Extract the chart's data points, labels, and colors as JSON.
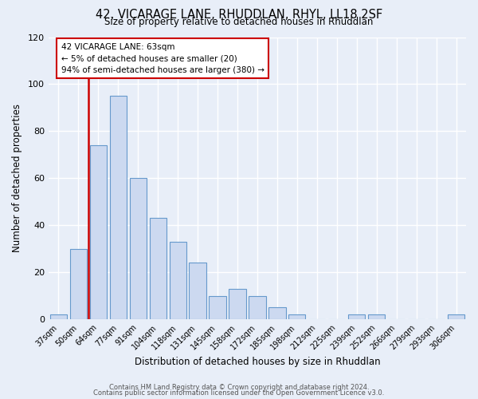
{
  "title": "42, VICARAGE LANE, RHUDDLAN, RHYL, LL18 2SF",
  "subtitle": "Size of property relative to detached houses in Rhuddlan",
  "xlabel": "Distribution of detached houses by size in Rhuddlan",
  "ylabel": "Number of detached properties",
  "bar_labels": [
    "37sqm",
    "50sqm",
    "64sqm",
    "77sqm",
    "91sqm",
    "104sqm",
    "118sqm",
    "131sqm",
    "145sqm",
    "158sqm",
    "172sqm",
    "185sqm",
    "198sqm",
    "212sqm",
    "225sqm",
    "239sqm",
    "252sqm",
    "266sqm",
    "279sqm",
    "293sqm",
    "306sqm"
  ],
  "bar_values": [
    2,
    30,
    74,
    95,
    60,
    43,
    33,
    24,
    10,
    13,
    10,
    5,
    2,
    0,
    0,
    2,
    2,
    0,
    0,
    0,
    2
  ],
  "bar_fill_color": "#ccd9f0",
  "bar_edge_color": "#6699cc",
  "red_line_index": 2,
  "red_line_color": "#cc0000",
  "ylim": [
    0,
    120
  ],
  "yticks": [
    0,
    20,
    40,
    60,
    80,
    100,
    120
  ],
  "annotation_title": "42 VICARAGE LANE: 63sqm",
  "annotation_line1": "← 5% of detached houses are smaller (20)",
  "annotation_line2": "94% of semi-detached houses are larger (380) →",
  "annotation_box_facecolor": "#ffffff",
  "annotation_box_edgecolor": "#cc0000",
  "footer_line1": "Contains HM Land Registry data © Crown copyright and database right 2024.",
  "footer_line2": "Contains public sector information licensed under the Open Government Licence v3.0.",
  "background_color": "#e8eef8",
  "grid_color": "#ffffff",
  "grid_linewidth": 1.0
}
